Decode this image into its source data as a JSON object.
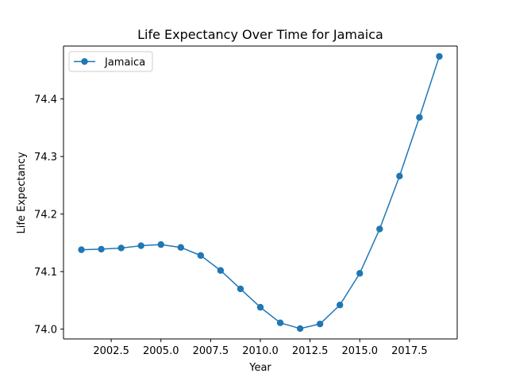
{
  "chart_data": {
    "type": "line",
    "title": "Life Expectancy Over Time for Jamaica",
    "xlabel": "Year",
    "ylabel": "Life Expectancy",
    "xlim": [
      2000.1,
      2019.9
    ],
    "ylim": [
      73.983,
      74.492
    ],
    "x_ticks": [
      2002.5,
      2005.0,
      2007.5,
      2010.0,
      2012.5,
      2015.0,
      2017.5
    ],
    "x_tick_labels": [
      "2002.5",
      "2005.0",
      "2007.5",
      "2010.0",
      "2012.5",
      "2015.0",
      "2017.5"
    ],
    "y_ticks": [
      74.0,
      74.1,
      74.2,
      74.3,
      74.4
    ],
    "y_tick_labels": [
      "74.0",
      "74.1",
      "74.2",
      "74.3",
      "74.4"
    ],
    "grid": false,
    "legend_position": "top-left",
    "x": [
      2001,
      2002,
      2003,
      2004,
      2005,
      2006,
      2007,
      2008,
      2009,
      2010,
      2011,
      2012,
      2013,
      2014,
      2015,
      2016,
      2017,
      2018,
      2019
    ],
    "series": [
      {
        "name": "Jamaica",
        "color": "#1f77b4",
        "marker": "circle",
        "values": [
          74.138,
          74.139,
          74.141,
          74.145,
          74.147,
          74.142,
          74.128,
          74.102,
          74.07,
          74.038,
          74.011,
          74.001,
          74.009,
          74.042,
          74.097,
          74.174,
          74.266,
          74.368,
          74.474
        ]
      }
    ]
  }
}
